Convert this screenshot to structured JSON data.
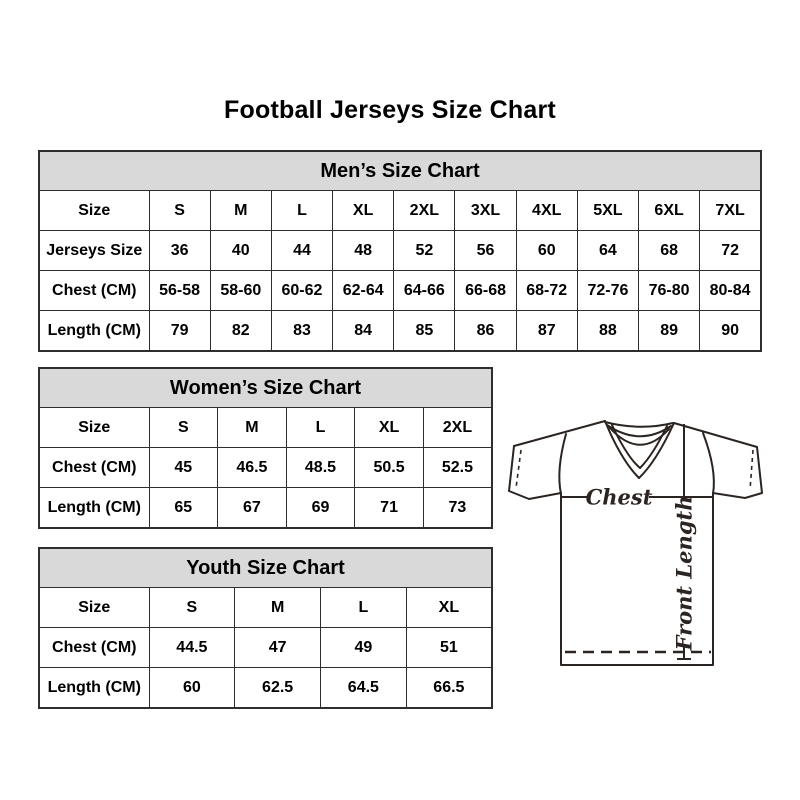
{
  "page": {
    "title": "Football Jerseys Size Chart"
  },
  "colors": {
    "background": "#ffffff",
    "table_header_fill": "#d9d9d9",
    "table_border": "#2e2e2e",
    "text": "#000000",
    "diagram_line": "#2b2420"
  },
  "tables": {
    "mens": {
      "title": "Men’s Size Chart",
      "rows": [
        [
          "Size",
          "S",
          "M",
          "L",
          "XL",
          "2XL",
          "3XL",
          "4XL",
          "5XL",
          "6XL",
          "7XL"
        ],
        [
          "Jerseys Size",
          "36",
          "40",
          "44",
          "48",
          "52",
          "56",
          "60",
          "64",
          "68",
          "72"
        ],
        [
          "Chest (CM)",
          "56-58",
          "58-60",
          "60-62",
          "62-64",
          "64-66",
          "66-68",
          "68-72",
          "72-76",
          "76-80",
          "80-84"
        ],
        [
          "Length (CM)",
          "79",
          "82",
          "83",
          "84",
          "85",
          "86",
          "87",
          "88",
          "89",
          "90"
        ]
      ]
    },
    "womens": {
      "title": "Women’s Size Chart",
      "rows": [
        [
          "Size",
          "S",
          "M",
          "L",
          "XL",
          "2XL"
        ],
        [
          "Chest (CM)",
          "45",
          "46.5",
          "48.5",
          "50.5",
          "52.5"
        ],
        [
          "Length (CM)",
          "65",
          "67",
          "69",
          "71",
          "73"
        ]
      ]
    },
    "youth": {
      "title": "Youth Size Chart",
      "rows": [
        [
          "Size",
          "S",
          "M",
          "L",
          "XL"
        ],
        [
          "Chest (CM)",
          "44.5",
          "47",
          "49",
          "51"
        ],
        [
          "Length (CM)",
          "60",
          "62.5",
          "64.5",
          "66.5"
        ]
      ]
    }
  },
  "diagram": {
    "chest_label": "Chest",
    "front_length_label": "Front Length"
  }
}
